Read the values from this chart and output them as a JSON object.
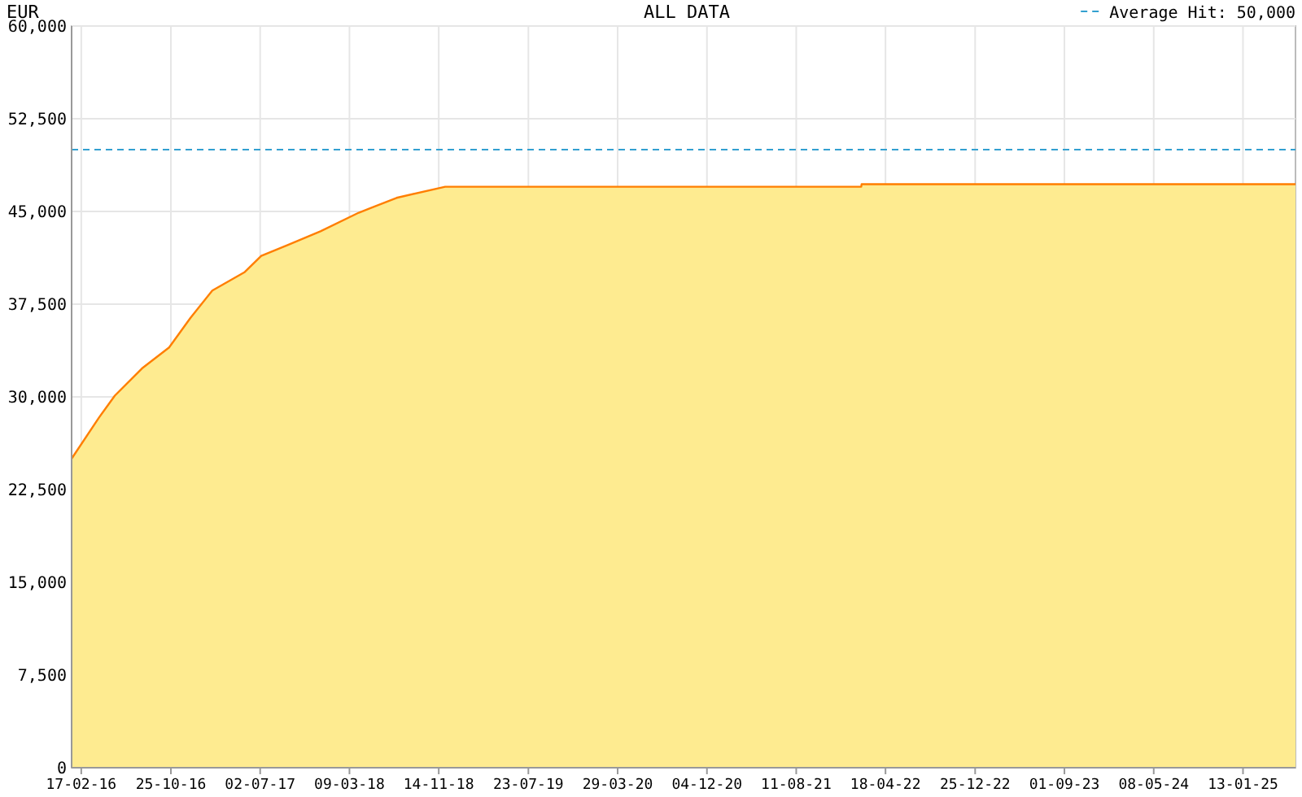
{
  "chart_data": {
    "type": "area",
    "title": "EUR",
    "subtitle": "ALL DATA",
    "x": [
      "2016-01-21",
      "2016-04-06",
      "2016-05-21",
      "2016-08-05",
      "2016-10-20",
      "2016-12-19",
      "2017-02-18",
      "2017-05-20",
      "2017-07-05",
      "2017-09-18",
      "2017-12-18",
      "2018-04-04",
      "2018-07-19",
      "2018-12-02",
      "2022-02-09",
      "2022-02-10",
      "2025-06-09"
    ],
    "series": [
      {
        "color": "#feeb90",
        "values": [
          25000,
          28300,
          30100,
          32300,
          34000,
          36400,
          38600,
          40100,
          41400,
          42300,
          43400,
          44900,
          46100,
          47000,
          47000,
          47200,
          47200
        ]
      }
    ],
    "xlim": [
      "2016-01-21",
      "2025-06-09"
    ],
    "xticks": [
      {
        "value": "2016-02-17",
        "label": "17-02-16"
      },
      {
        "value": "2016-10-25",
        "label": "25-10-16"
      },
      {
        "value": "2017-07-02",
        "label": "02-07-17"
      },
      {
        "value": "2018-03-09",
        "label": "09-03-18"
      },
      {
        "value": "2018-11-14",
        "label": "14-11-18"
      },
      {
        "value": "2019-07-23",
        "label": "23-07-19"
      },
      {
        "value": "2020-03-29",
        "label": "29-03-20"
      },
      {
        "value": "2020-12-04",
        "label": "04-12-20"
      },
      {
        "value": "2021-08-11",
        "label": "11-08-21"
      },
      {
        "value": "2022-04-18",
        "label": "18-04-22"
      },
      {
        "value": "2022-12-25",
        "label": "25-12-22"
      },
      {
        "value": "2023-09-01",
        "label": "01-09-23"
      },
      {
        "value": "2024-05-08",
        "label": "08-05-24"
      },
      {
        "value": "2025-01-13",
        "label": "13-01-25"
      }
    ],
    "ylim": [
      0,
      60000
    ],
    "yticks": [
      0,
      {
        "value": 7500,
        "label": "7,500"
      },
      {
        "value": 15000,
        "label": "15,000"
      },
      {
        "value": 22500,
        "label": "22,500"
      },
      {
        "value": 30000,
        "label": "30,000"
      },
      {
        "value": 37500,
        "label": "37,500"
      },
      {
        "value": 45000,
        "label": "45,000"
      },
      {
        "value": 52500,
        "label": "52,500"
      },
      {
        "value": 60000,
        "label": "60,000"
      }
    ],
    "grid": true,
    "ref_lines": [
      {
        "axis": "y",
        "value": 50000,
        "label": "Average Hit: 50,000",
        "color": "#33a0d0",
        "line_style": "dashed"
      }
    ]
  }
}
